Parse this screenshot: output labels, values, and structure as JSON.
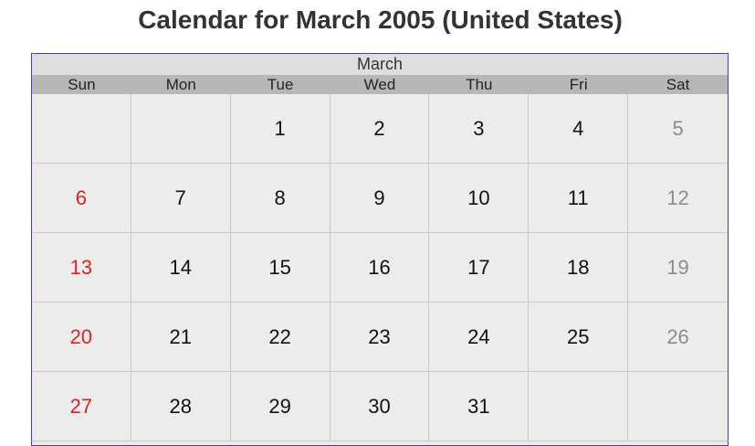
{
  "page": {
    "title": "Calendar for March 2005 (United States)"
  },
  "calendar": {
    "month_label": "March",
    "weekdays": [
      "Sun",
      "Mon",
      "Tue",
      "Wed",
      "Thu",
      "Fri",
      "Sat"
    ],
    "weeks": [
      [
        "",
        "",
        "1",
        "2",
        "3",
        "4",
        "5"
      ],
      [
        "6",
        "7",
        "8",
        "9",
        "10",
        "11",
        "12"
      ],
      [
        "13",
        "14",
        "15",
        "16",
        "17",
        "18",
        "19"
      ],
      [
        "20",
        "21",
        "22",
        "23",
        "24",
        "25",
        "26"
      ],
      [
        "27",
        "28",
        "29",
        "30",
        "31",
        "",
        ""
      ]
    ],
    "colors": {
      "sunday": "#e41f1f",
      "saturday": "#8c8c8c",
      "weekday": "#111111",
      "border": "#3f3fcf"
    }
  }
}
